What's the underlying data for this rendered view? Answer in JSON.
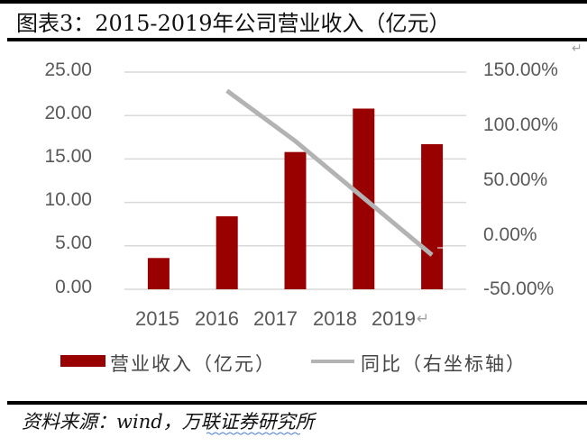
{
  "header": {
    "title": "图表3：2015-2019年公司营业收入（亿元）"
  },
  "chart_data": {
    "type": "bar",
    "title": "图表3：2015-2019年公司营业收入（亿元）",
    "categories": [
      "2015",
      "2016",
      "2017",
      "2018",
      "2019"
    ],
    "series": [
      {
        "name": "营业收入（亿元）",
        "type": "bar",
        "axis": "left",
        "color": "#990000",
        "values": [
          3.6,
          8.4,
          15.8,
          20.8,
          16.7
        ]
      },
      {
        "name": "同比（右坐标轴）",
        "type": "line",
        "axis": "right",
        "color": "#b3b3b3",
        "values": [
          null,
          133,
          87,
          35,
          -17
        ]
      }
    ],
    "left_axis": {
      "ticks": [
        "25.00",
        "20.00",
        "15.00",
        "10.00",
        "5.00",
        "0.00"
      ],
      "ylim": [
        0,
        25
      ]
    },
    "right_axis": {
      "ticks": [
        "150.00%",
        "100.00%",
        "50.00%",
        "0.00%",
        "-50.00%"
      ],
      "ylim": [
        -50,
        150
      ]
    },
    "xlabel": "",
    "ylabel": "",
    "grid": true,
    "legend_position": "bottom"
  },
  "axes": {
    "left_ticks": [
      "25.00",
      "20.00",
      "15.00",
      "10.00",
      "5.00",
      "0.00"
    ],
    "right_ticks": [
      "150.00%",
      "100.00%",
      "50.00%",
      "0.00%",
      "-50.00%"
    ],
    "x_ticks": [
      "2015",
      "2016",
      "2017",
      "2018",
      "2019"
    ]
  },
  "legend": {
    "bar_label": "营业收入（亿元）",
    "line_label": "同比（右坐标轴）"
  },
  "footer": {
    "source": "资料来源：wind，万联证券研究所"
  },
  "colors": {
    "bar": "#990000",
    "line": "#b3b3b3",
    "grid": "#d9d9d9",
    "axis_text": "#595959"
  }
}
